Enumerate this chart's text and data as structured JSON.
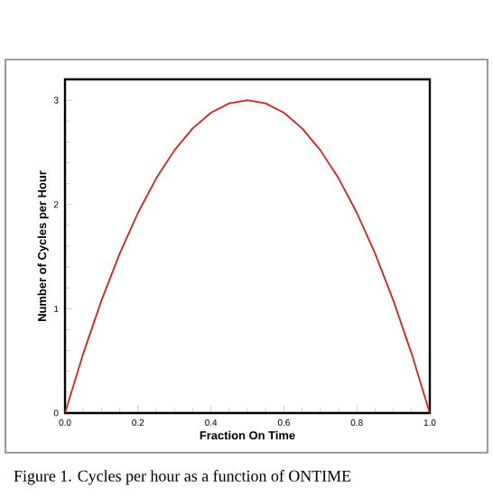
{
  "chart_data": {
    "type": "line",
    "xlabel": "Fraction On Time",
    "ylabel": "Number of Cycles per Hour",
    "x": [
      0,
      0.05,
      0.1,
      0.15,
      0.2,
      0.25,
      0.3,
      0.35,
      0.4,
      0.45,
      0.5,
      0.55,
      0.6,
      0.65,
      0.7,
      0.75,
      0.8,
      0.85,
      0.9,
      0.95,
      1.0
    ],
    "series": [
      {
        "color": "#d42020",
        "values": [
          0,
          0.57,
          1.08,
          1.53,
          1.92,
          2.25,
          2.52,
          2.73,
          2.88,
          2.97,
          3.0,
          2.97,
          2.88,
          2.73,
          2.52,
          2.25,
          1.92,
          1.53,
          1.08,
          0.57,
          0
        ]
      }
    ],
    "xlim": [
      0,
      1
    ],
    "ylim": [
      0,
      3.2
    ],
    "xticks": [
      {
        "value": 0,
        "label": "0.0"
      },
      {
        "value": 0.2,
        "label": "0.2"
      },
      {
        "value": 0.4,
        "label": "0.4"
      },
      {
        "value": 0.6,
        "label": "0.6"
      },
      {
        "value": 0.8,
        "label": "0.8"
      },
      {
        "value": 1,
        "label": "1.0"
      }
    ],
    "yticks": [
      0,
      1,
      2,
      3
    ],
    "marker": "none",
    "line_style": "solid",
    "annotations": [
      "Figure 1. Cycles per hour as a function of ONTIME"
    ]
  }
}
